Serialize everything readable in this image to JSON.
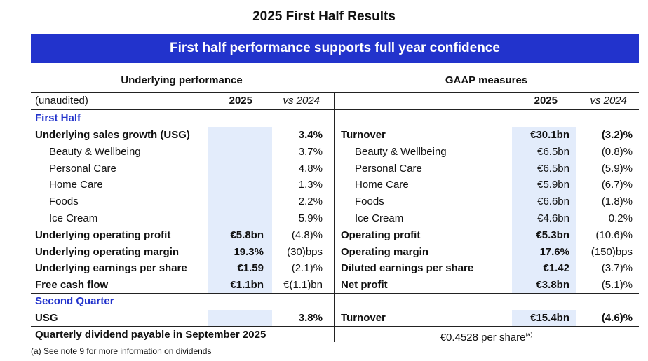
{
  "title": "2025 First Half Results",
  "banner": "First half performance supports full year confidence",
  "left_heading": "Underlying performance",
  "right_heading": "GAAP measures",
  "header": {
    "unaudited": "(unaudited)",
    "col_year": "2025",
    "col_vs": "vs 2024"
  },
  "sections": {
    "first_half": "First Half",
    "second_quarter": "Second Quarter"
  },
  "left_rows": [
    {
      "label": "Underlying sales growth (USG)",
      "v2025": "",
      "vs": "3.4%"
    },
    {
      "label": "Beauty & Wellbeing",
      "v2025": "",
      "vs": "3.7%"
    },
    {
      "label": "Personal Care",
      "v2025": "",
      "vs": "4.8%"
    },
    {
      "label": "Home Care",
      "v2025": "",
      "vs": "1.3%"
    },
    {
      "label": "Foods",
      "v2025": "",
      "vs": "2.2%"
    },
    {
      "label": "Ice Cream",
      "v2025": "",
      "vs": "5.9%"
    },
    {
      "label": "Underlying operating profit",
      "v2025": "€5.8bn",
      "vs": "(4.8)%"
    },
    {
      "label": "Underlying operating margin",
      "v2025": "19.3%",
      "vs": "(30)bps"
    },
    {
      "label": "Underlying earnings per share",
      "v2025": "€1.59",
      "vs": "(2.1)%"
    },
    {
      "label": "Free cash flow",
      "v2025": "€1.1bn",
      "vs": "€(1.1)bn"
    }
  ],
  "right_rows": [
    {
      "label": "Turnover",
      "v2025": "€30.1bn",
      "vs": "(3.2)%"
    },
    {
      "label": "Beauty & Wellbeing",
      "v2025": "€6.5bn",
      "vs": "(0.8)%"
    },
    {
      "label": "Personal Care",
      "v2025": "€6.5bn",
      "vs": "(5.9)%"
    },
    {
      "label": "Home Care",
      "v2025": "€5.9bn",
      "vs": "(6.7)%"
    },
    {
      "label": "Foods",
      "v2025": "€6.6bn",
      "vs": "(1.8)%"
    },
    {
      "label": "Ice Cream",
      "v2025": "€4.6bn",
      "vs": "0.2%"
    },
    {
      "label": "Operating profit",
      "v2025": "€5.3bn",
      "vs": "(10.6)%"
    },
    {
      "label": "Operating margin",
      "v2025": "17.6%",
      "vs": "(150)bps"
    },
    {
      "label": "Diluted earnings per share",
      "v2025": "€1.42",
      "vs": "(3.7)%"
    },
    {
      "label": "Net profit",
      "v2025": "€3.8bn",
      "vs": "(5.1)%"
    }
  ],
  "q2_left": {
    "label": "USG",
    "v2025": "",
    "vs": "3.8%"
  },
  "q2_right": {
    "label": "Turnover",
    "v2025": "€15.4bn",
    "vs": "(4.6)%"
  },
  "dividend": {
    "label": "Quarterly dividend payable in September 2025",
    "value": "€0.4528 per share",
    "note_mark": "(a)"
  },
  "footnote": "(a) See note 9 for more information on dividends"
}
